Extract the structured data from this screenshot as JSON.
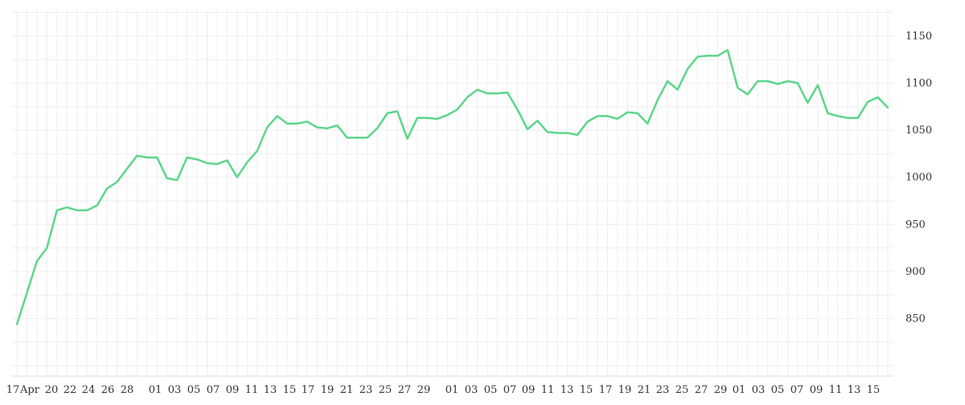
{
  "chart_data": {
    "type": "line",
    "title": "",
    "xlabel": "",
    "ylabel": "",
    "x_ticks": [
      "17",
      "Apr",
      "20",
      "22",
      "24",
      "26",
      "28",
      "01",
      "03",
      "05",
      "07",
      "09",
      "11",
      "13",
      "15",
      "17",
      "19",
      "21",
      "23",
      "25",
      "27",
      "29",
      "01",
      "03",
      "05",
      "07",
      "09",
      "11",
      "13",
      "15",
      "17",
      "19",
      "21",
      "23",
      "25",
      "27",
      "29",
      "01",
      "03",
      "05",
      "07",
      "09",
      "11",
      "13",
      "15"
    ],
    "y_ticks": [
      850,
      900,
      950,
      1000,
      1050,
      1100,
      1150
    ],
    "ylim": [
      795,
      1180
    ],
    "grid": true,
    "line_color": "#5cd68a",
    "series": [
      {
        "values": [
          844,
          877,
          911,
          925,
          965,
          968,
          965,
          965,
          970,
          988,
          995,
          1009,
          1023,
          1021,
          1021,
          999,
          997,
          1021,
          1019,
          1015,
          1014,
          1018,
          1000,
          1016,
          1028,
          1053,
          1065,
          1057,
          1057,
          1059,
          1053,
          1052,
          1055,
          1042,
          1042,
          1042,
          1052,
          1068,
          1070,
          1041,
          1063,
          1063,
          1062,
          1066,
          1072,
          1085,
          1093,
          1089,
          1089,
          1090,
          1072,
          1051,
          1060,
          1048,
          1047,
          1047,
          1045,
          1059,
          1065,
          1065,
          1062,
          1069,
          1068,
          1057,
          1082,
          1102,
          1093,
          1115,
          1128,
          1129,
          1129,
          1135,
          1095,
          1088,
          1102,
          1102,
          1099,
          1102,
          1100,
          1079,
          1098,
          1068,
          1065,
          1063,
          1063,
          1080,
          1085,
          1074
        ]
      }
    ]
  }
}
